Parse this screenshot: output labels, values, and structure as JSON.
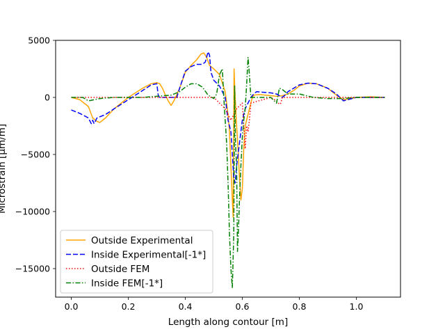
{
  "chart_data": {
    "type": "line",
    "title": "",
    "xlabel": "Length along contour [m]",
    "ylabel": "Microstrain [μm/m]",
    "xlim": [
      -0.055,
      1.155
    ],
    "ylim": [
      -17500,
      5000
    ],
    "xticks": [
      0.0,
      0.2,
      0.4,
      0.6,
      0.8,
      1.0
    ],
    "xtick_labels": [
      "0.0",
      "0.2",
      "0.4",
      "0.6",
      "0.8",
      "1.0"
    ],
    "yticks": [
      5000,
      0,
      -5000,
      -10000,
      -15000
    ],
    "ytick_labels": [
      "5000",
      "0",
      "−5000",
      "−10000",
      "−15000"
    ],
    "grid": false,
    "legend_position": "lower left",
    "series": [
      {
        "name": "Outside Experimental",
        "color": "#ffa500",
        "style": "solid",
        "x": [
          0.0,
          0.03,
          0.06,
          0.075,
          0.09,
          0.1,
          0.12,
          0.15,
          0.2,
          0.25,
          0.28,
          0.3,
          0.31,
          0.32,
          0.33,
          0.34,
          0.35,
          0.36,
          0.38,
          0.4,
          0.42,
          0.44,
          0.455,
          0.465,
          0.475,
          0.485,
          0.5,
          0.52,
          0.54,
          0.55,
          0.555,
          0.56,
          0.565,
          0.568,
          0.571,
          0.574,
          0.577,
          0.58,
          0.585,
          0.59,
          0.595,
          0.6,
          0.605,
          0.61,
          0.615,
          0.62,
          0.625,
          0.63,
          0.635,
          0.64,
          0.66,
          0.7,
          0.72,
          0.74,
          0.76,
          0.78,
          0.8,
          0.83,
          0.86,
          0.9,
          0.93,
          0.955,
          0.97,
          1.0,
          1.05,
          1.1
        ],
        "y": [
          0,
          -200,
          -800,
          -1800,
          -2100,
          -2200,
          -1800,
          -1000,
          0,
          800,
          1200,
          1300,
          1200,
          800,
          200,
          -300,
          -700,
          -300,
          800,
          2200,
          2800,
          3300,
          3800,
          3900,
          3500,
          2800,
          2500,
          2000,
          500,
          -1500,
          -3000,
          -6000,
          -9000,
          -10500,
          2500,
          500,
          -1000,
          -2500,
          -4500,
          -7000,
          -9000,
          -8000,
          -4500,
          -2500,
          -2000,
          -1500,
          -1000,
          -500,
          0,
          200,
          250,
          150,
          100,
          150,
          300,
          600,
          1000,
          1250,
          1200,
          800,
          200,
          -200,
          -150,
          0,
          50,
          0
        ]
      },
      {
        "name": "Inside Experimental[-1*]",
        "color": "#0000ff",
        "style": "dashed",
        "x": [
          0.0,
          0.03,
          0.06,
          0.07,
          0.075,
          0.08,
          0.09,
          0.12,
          0.15,
          0.2,
          0.25,
          0.28,
          0.3,
          0.305,
          0.31,
          0.32,
          0.37,
          0.38,
          0.4,
          0.42,
          0.44,
          0.46,
          0.47,
          0.48,
          0.485,
          0.49,
          0.5,
          0.52,
          0.54,
          0.55,
          0.56,
          0.565,
          0.57,
          0.575,
          0.58,
          0.585,
          0.59,
          0.595,
          0.6,
          0.605,
          0.61,
          0.62,
          0.63,
          0.64,
          0.65,
          0.7,
          0.72,
          0.74,
          0.75,
          0.76,
          0.78,
          0.8,
          0.83,
          0.86,
          0.9,
          0.93,
          0.955,
          0.97,
          1.0,
          1.05,
          1.1
        ],
        "y": [
          -1100,
          -1400,
          -1800,
          -2300,
          -2000,
          -2300,
          -1800,
          -1500,
          -1000,
          -200,
          600,
          1100,
          1200,
          200,
          0,
          0,
          0,
          800,
          2300,
          2700,
          2900,
          2900,
          3100,
          4000,
          3700,
          2200,
          1500,
          1000,
          0,
          -2000,
          -3000,
          -5000,
          -7000,
          -7500,
          -6000,
          -5000,
          -4000,
          -3000,
          -2000,
          -1500,
          -1000,
          -500,
          0,
          300,
          500,
          400,
          300,
          0,
          200,
          500,
          800,
          1100,
          1250,
          1200,
          800,
          300,
          -300,
          -200,
          0,
          0,
          0
        ]
      },
      {
        "name": "Outside FEM",
        "color": "#ff0000",
        "style": "dotted",
        "x": [
          0.0,
          0.05,
          0.1,
          0.2,
          0.3,
          0.35,
          0.4,
          0.45,
          0.5,
          0.54,
          0.56,
          0.58,
          0.6,
          0.61,
          0.615,
          0.62,
          0.625,
          0.63,
          0.7,
          0.72,
          0.73,
          0.735,
          0.74,
          0.8,
          0.9,
          1.0,
          1.1
        ],
        "y": [
          0,
          0,
          0,
          0,
          0,
          0,
          0,
          0,
          0,
          -1000,
          -2000,
          -1000,
          -500,
          -4500,
          -2500,
          -3000,
          -2000,
          -500,
          0,
          -300,
          -600,
          -500,
          0,
          0,
          0,
          0,
          0
        ]
      },
      {
        "name": "Inside FEM[-1*]",
        "color": "#008000",
        "style": "dashdot",
        "x": [
          0.0,
          0.04,
          0.06,
          0.08,
          0.1,
          0.15,
          0.2,
          0.25,
          0.3,
          0.35,
          0.38,
          0.4,
          0.42,
          0.44,
          0.46,
          0.48,
          0.5,
          0.51,
          0.52,
          0.53,
          0.535,
          0.54,
          0.545,
          0.55,
          0.555,
          0.56,
          0.565,
          0.57,
          0.573,
          0.576,
          0.58,
          0.583,
          0.586,
          0.59,
          0.595,
          0.6,
          0.605,
          0.61,
          0.615,
          0.62,
          0.625,
          0.63,
          0.65,
          0.7,
          0.72,
          0.73,
          0.74,
          0.76,
          0.8,
          0.85,
          0.9,
          0.95,
          1.0,
          1.05,
          1.1
        ],
        "y": [
          0,
          0,
          -300,
          -200,
          -100,
          0,
          0,
          0,
          100,
          200,
          500,
          900,
          1200,
          1200,
          900,
          200,
          -100,
          300,
          2000,
          2500,
          0,
          -2000,
          -4000,
          -7500,
          -12000,
          -15000,
          -16700,
          -12000,
          1000,
          -4000,
          -6000,
          -13500,
          -12000,
          -9000,
          -6000,
          -3500,
          -2000,
          -1000,
          1000,
          3500,
          2000,
          0,
          0,
          0,
          -500,
          800,
          700,
          300,
          300,
          0,
          -100,
          -100,
          0,
          0,
          0
        ]
      }
    ]
  }
}
